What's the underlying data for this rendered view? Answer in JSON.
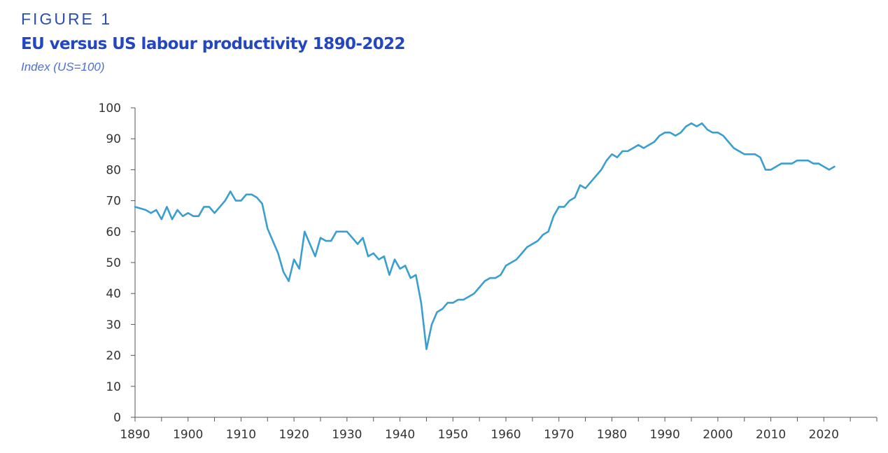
{
  "figure": {
    "label": "FIGURE 1",
    "title": "EU versus US labour productivity 1890-2022",
    "subtitle": "Index (US=100)"
  },
  "colors": {
    "line": "#3a9fcf",
    "label": "#2a4fb0",
    "title": "#2346c2",
    "subtitle": "#4f6fd0",
    "axis": "#555555"
  },
  "chart_data": {
    "type": "line",
    "title": "EU versus US labour productivity 1890-2022",
    "subtitle": "Index (US=100)",
    "xlabel": "",
    "ylabel": "",
    "xlim": [
      1890,
      2030
    ],
    "ylim": [
      0,
      100
    ],
    "x_ticks": [
      1890,
      1900,
      1910,
      1920,
      1930,
      1940,
      1950,
      1960,
      1970,
      1980,
      1990,
      2000,
      2010,
      2020
    ],
    "y_ticks": [
      0,
      10,
      20,
      30,
      40,
      50,
      60,
      70,
      80,
      90,
      100
    ],
    "grid": false,
    "legend": "none",
    "series": [
      {
        "x": [
          1890,
          1891,
          1892,
          1893,
          1894,
          1895,
          1896,
          1897,
          1898,
          1899,
          1900,
          1901,
          1902,
          1903,
          1904,
          1905,
          1906,
          1907,
          1908,
          1909,
          1910,
          1911,
          1912,
          1913,
          1914,
          1915,
          1916,
          1917,
          1918,
          1919,
          1920,
          1921,
          1922,
          1923,
          1924,
          1925,
          1926,
          1927,
          1928,
          1929,
          1930,
          1931,
          1932,
          1933,
          1934,
          1935,
          1936,
          1937,
          1938,
          1939,
          1940,
          1941,
          1942,
          1943,
          1944,
          1945,
          1946,
          1947,
          1948,
          1949,
          1950,
          1951,
          1952,
          1953,
          1954,
          1955,
          1956,
          1957,
          1958,
          1959,
          1960,
          1961,
          1962,
          1963,
          1964,
          1965,
          1966,
          1967,
          1968,
          1969,
          1970,
          1971,
          1972,
          1973,
          1974,
          1975,
          1976,
          1977,
          1978,
          1979,
          1980,
          1981,
          1982,
          1983,
          1984,
          1985,
          1986,
          1987,
          1988,
          1989,
          1990,
          1991,
          1992,
          1993,
          1994,
          1995,
          1996,
          1997,
          1998,
          1999,
          2000,
          2001,
          2002,
          2003,
          2004,
          2005,
          2006,
          2007,
          2008,
          2009,
          2010,
          2011,
          2012,
          2013,
          2014,
          2015,
          2016,
          2017,
          2018,
          2019,
          2020,
          2021,
          2022
        ],
        "values": [
          68,
          67.5,
          67,
          66,
          67,
          64,
          68,
          64,
          67,
          65,
          66,
          65,
          65,
          68,
          68,
          66,
          68,
          70,
          73,
          70,
          70,
          72,
          72,
          71,
          69,
          61,
          57,
          53,
          47,
          44,
          51,
          48,
          60,
          56,
          52,
          58,
          57,
          57,
          60,
          60,
          60,
          58,
          56,
          58,
          52,
          53,
          51,
          52,
          46,
          51,
          48,
          49,
          45,
          46,
          37,
          22,
          30,
          34,
          35,
          37,
          37,
          38,
          38,
          39,
          40,
          42,
          44,
          45,
          45,
          46,
          49,
          50,
          51,
          53,
          55,
          56,
          57,
          59,
          60,
          65,
          68,
          68,
          70,
          71,
          75,
          74,
          76,
          78,
          80,
          83,
          85,
          84,
          86,
          86,
          87,
          88,
          87,
          88,
          89,
          91,
          92,
          92,
          91,
          92,
          94,
          95,
          94,
          95,
          93,
          92,
          92,
          91,
          89,
          87,
          86,
          85,
          85,
          85,
          84,
          80,
          80,
          81,
          82,
          82,
          82,
          83,
          83,
          83,
          82,
          82,
          81,
          80,
          81
        ]
      }
    ]
  }
}
